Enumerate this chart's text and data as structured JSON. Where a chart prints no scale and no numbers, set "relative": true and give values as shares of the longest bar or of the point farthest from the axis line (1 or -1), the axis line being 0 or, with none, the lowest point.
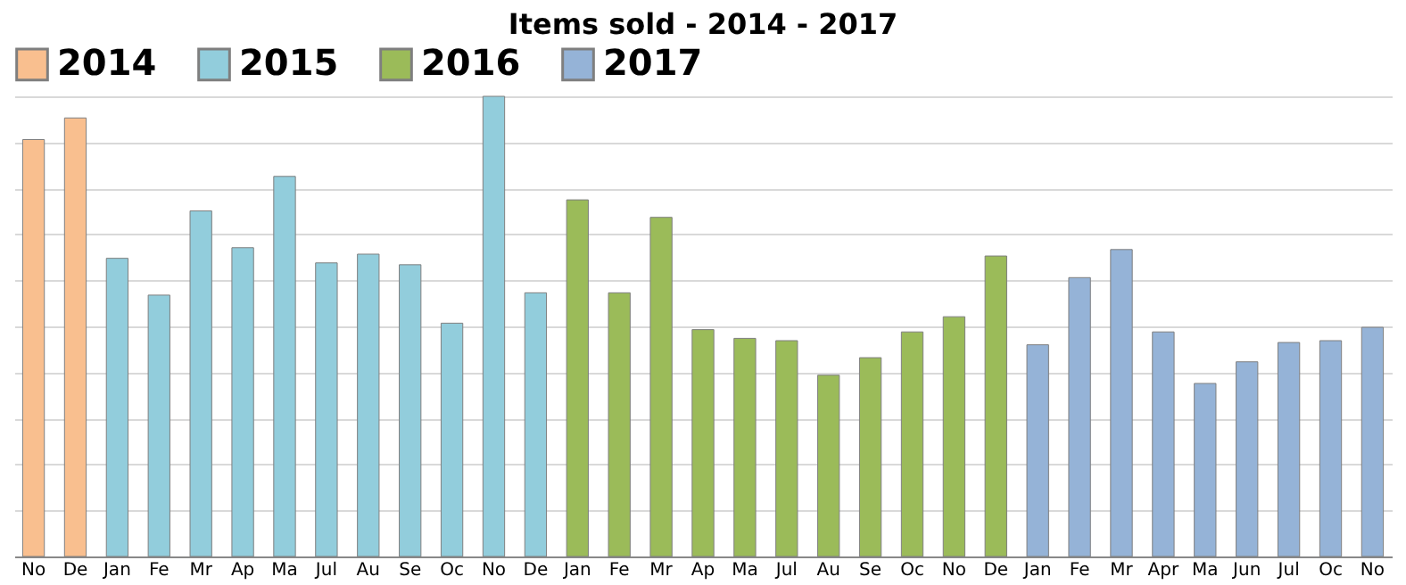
{
  "chart_data": {
    "type": "bar",
    "title": "Items sold - 2014 - 2017",
    "relative": true,
    "grid": "y",
    "legend": "top",
    "categories": [
      "No",
      "De",
      "Jan",
      "Fe",
      "Mr",
      "Ap",
      "Ma",
      "Jul",
      "Au",
      "Se",
      "Oc",
      "No",
      "De",
      "Jan",
      "Fe",
      "Mr",
      "Ap",
      "Ma",
      "Jul",
      "Au",
      "Se",
      "Oc",
      "No",
      "De",
      "Jan",
      "Fe",
      "Mr",
      "Apr",
      "Ma",
      "Jun",
      "Jul",
      "Oc",
      "No"
    ],
    "series": [
      {
        "name": "2014",
        "color": "#f9bf8f",
        "values": [
          0.906,
          0.953,
          null,
          null,
          null,
          null,
          null,
          null,
          null,
          null,
          null,
          null,
          null,
          null,
          null,
          null,
          null,
          null,
          null,
          null,
          null,
          null,
          null,
          null,
          null,
          null,
          null,
          null,
          null,
          null,
          null,
          null,
          null
        ]
      },
      {
        "name": "2015",
        "color": "#92cddc",
        "values": [
          null,
          null,
          0.648,
          0.568,
          0.751,
          0.671,
          0.826,
          0.638,
          0.657,
          0.634,
          0.507,
          1,
          0.573,
          null,
          null,
          null,
          null,
          null,
          null,
          null,
          null,
          null,
          null,
          null,
          null,
          null,
          null,
          null,
          null,
          null,
          null,
          null,
          null
        ]
      },
      {
        "name": "2016",
        "color": "#9bbb59",
        "values": [
          null,
          null,
          null,
          null,
          null,
          null,
          null,
          null,
          null,
          null,
          null,
          null,
          null,
          0.775,
          0.573,
          0.737,
          0.493,
          0.474,
          0.469,
          0.394,
          0.432,
          0.488,
          0.521,
          0.653,
          null,
          null,
          null,
          null,
          null,
          null,
          null,
          null,
          null
        ]
      },
      {
        "name": "2017",
        "color": "#95b3d7",
        "values": [
          null,
          null,
          null,
          null,
          null,
          null,
          null,
          null,
          null,
          null,
          null,
          null,
          null,
          null,
          null,
          null,
          null,
          null,
          null,
          null,
          null,
          null,
          null,
          null,
          0.46,
          0.606,
          0.667,
          0.488,
          0.376,
          0.423,
          0.465,
          0.469,
          0.498
        ]
      }
    ]
  }
}
